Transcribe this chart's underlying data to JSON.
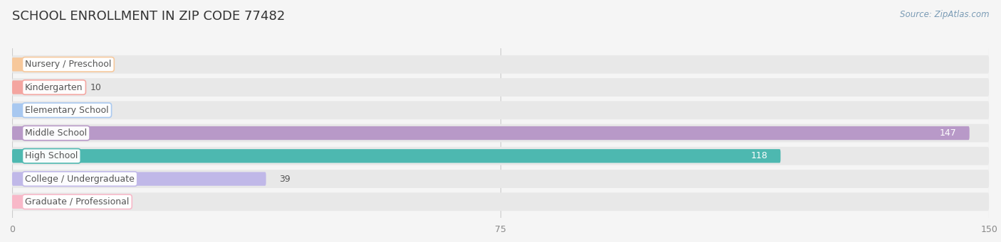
{
  "title": "SCHOOL ENROLLMENT IN ZIP CODE 77482",
  "source": "Source: ZipAtlas.com",
  "categories": [
    "Nursery / Preschool",
    "Kindergarten",
    "Elementary School",
    "Middle School",
    "High School",
    "College / Undergraduate",
    "Graduate / Professional"
  ],
  "values": [
    0,
    10,
    9,
    147,
    118,
    39,
    0
  ],
  "bar_colors": [
    "#f7c89b",
    "#f4a5a0",
    "#a8c8f0",
    "#b899c8",
    "#4db8b0",
    "#c0b8e8",
    "#f8b8c8"
  ],
  "xlim": [
    0,
    150
  ],
  "xticks": [
    0,
    75,
    150
  ],
  "bg_color": "#f5f5f5",
  "bar_bg_color": "#e8e8e8",
  "title_fontsize": 13,
  "label_fontsize": 9,
  "value_fontsize": 9,
  "bar_height": 0.6,
  "fig_width": 14.06,
  "fig_height": 3.41
}
